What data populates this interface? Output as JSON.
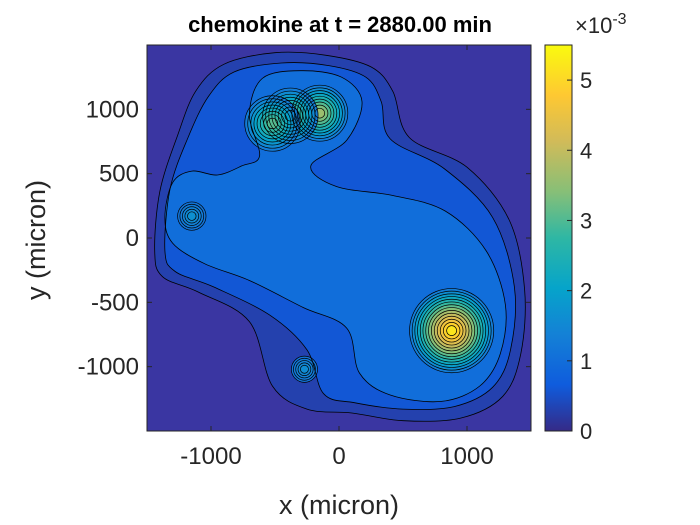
{
  "chart_data": {
    "type": "contour",
    "title": "chemokine at t = 2880.00 min",
    "xlabel": "x (micron)",
    "ylabel": "y (micron)",
    "xlim": [
      -1500,
      1500
    ],
    "ylim": [
      -1500,
      1500
    ],
    "x_ticks": [
      -1000,
      0,
      1000
    ],
    "y_ticks": [
      1000,
      500,
      0,
      -500,
      -1000
    ],
    "x_tick_labels": [
      "-1000",
      "0",
      "1000"
    ],
    "y_tick_labels": [
      "1000",
      "500",
      "0",
      "-500",
      "-1000"
    ],
    "grid": false,
    "colormap": "parula",
    "colorbar": {
      "range": [
        0,
        5.5
      ],
      "ticks": [
        0,
        1,
        2,
        3,
        4,
        5
      ],
      "tick_labels": [
        "0",
        "1",
        "2",
        "3",
        "4",
        "5"
      ],
      "multiplier_base": "×10",
      "multiplier_exponent": "-3"
    },
    "sources": [
      {
        "x": 880,
        "y": -720,
        "peak": 5.5,
        "sigma": 340,
        "rings": 14
      },
      {
        "x": -150,
        "y": 970,
        "peak": 3.9,
        "sigma": 230,
        "rings": 9
      },
      {
        "x": -380,
        "y": 950,
        "peak": 3.5,
        "sigma": 230,
        "rings": 8
      },
      {
        "x": -520,
        "y": 890,
        "peak": 3.3,
        "sigma": 230,
        "rings": 8
      },
      {
        "x": -1150,
        "y": 170,
        "peak": 1.8,
        "sigma": 120,
        "rings": 5
      },
      {
        "x": -270,
        "y": -1020,
        "peak": 1.7,
        "sigma": 110,
        "rings": 5
      }
    ],
    "outer_contours": [
      {
        "level": 0.3,
        "points": [
          [
            -1440,
            -100
          ],
          [
            -1400,
            360
          ],
          [
            -1260,
            800
          ],
          [
            -1120,
            1140
          ],
          [
            -900,
            1350
          ],
          [
            -500,
            1440
          ],
          [
            -100,
            1420
          ],
          [
            250,
            1330
          ],
          [
            420,
            1140
          ],
          [
            550,
            780
          ],
          [
            1000,
            550
          ],
          [
            1330,
            140
          ],
          [
            1450,
            -400
          ],
          [
            1420,
            -900
          ],
          [
            1280,
            -1230
          ],
          [
            950,
            -1400
          ],
          [
            500,
            -1420
          ],
          [
            100,
            -1360
          ],
          [
            -250,
            -1330
          ],
          [
            -520,
            -1150
          ],
          [
            -700,
            -650
          ],
          [
            -1100,
            -420
          ],
          [
            -1380,
            -300
          ]
        ]
      },
      {
        "level": 0.6,
        "points": [
          [
            -1360,
            -100
          ],
          [
            -1320,
            380
          ],
          [
            -1180,
            780
          ],
          [
            -1020,
            1100
          ],
          [
            -820,
            1290
          ],
          [
            -450,
            1360
          ],
          [
            -80,
            1340
          ],
          [
            210,
            1250
          ],
          [
            330,
            1060
          ],
          [
            400,
            770
          ],
          [
            820,
            540
          ],
          [
            1200,
            160
          ],
          [
            1370,
            -380
          ],
          [
            1340,
            -870
          ],
          [
            1200,
            -1160
          ],
          [
            900,
            -1310
          ],
          [
            500,
            -1330
          ],
          [
            120,
            -1280
          ],
          [
            -120,
            -1210
          ],
          [
            -250,
            -870
          ],
          [
            -540,
            -600
          ],
          [
            -980,
            -380
          ],
          [
            -1280,
            -260
          ]
        ]
      },
      {
        "level": 1.0,
        "points": [
          [
            -1360,
            160
          ],
          [
            -1300,
            430
          ],
          [
            -1150,
            520
          ],
          [
            -950,
            490
          ],
          [
            -760,
            560
          ],
          [
            -620,
            640
          ],
          [
            -700,
            960
          ],
          [
            -600,
            1240
          ],
          [
            -300,
            1300
          ],
          [
            20,
            1250
          ],
          [
            180,
            1060
          ],
          [
            60,
            760
          ],
          [
            -220,
            560
          ],
          [
            -20,
            400
          ],
          [
            420,
            330
          ],
          [
            830,
            210
          ],
          [
            1150,
            -100
          ],
          [
            1300,
            -520
          ],
          [
            1260,
            -900
          ],
          [
            1100,
            -1150
          ],
          [
            800,
            -1270
          ],
          [
            400,
            -1220
          ],
          [
            160,
            -1050
          ],
          [
            60,
            -700
          ],
          [
            -280,
            -540
          ],
          [
            -700,
            -330
          ],
          [
            -1050,
            -200
          ],
          [
            -1300,
            -40
          ]
        ]
      }
    ]
  }
}
